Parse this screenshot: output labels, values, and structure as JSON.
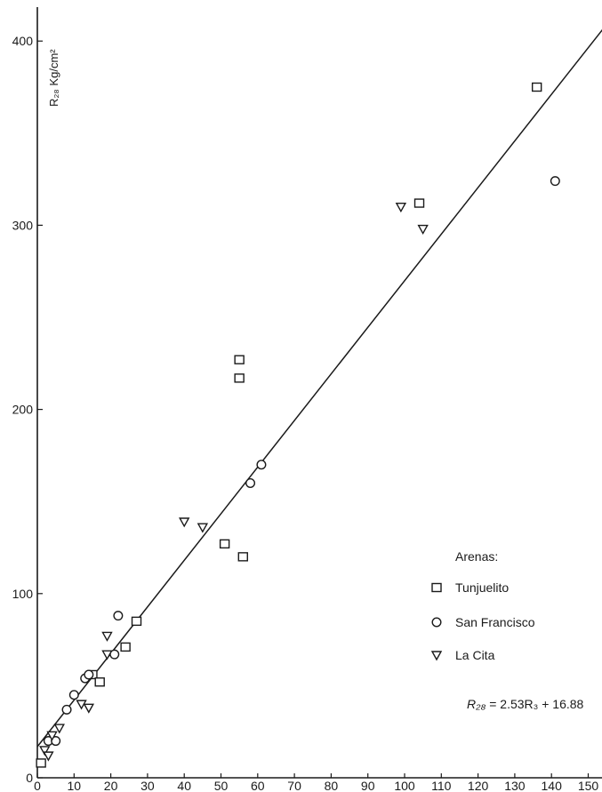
{
  "chart_data": {
    "type": "scatter",
    "title": "",
    "xlabel": "",
    "ylabel": "R₂₈ Kg/cm²",
    "xlim": [
      0,
      154
    ],
    "ylim": [
      0,
      410
    ],
    "x_ticks": [
      0,
      10,
      20,
      30,
      40,
      50,
      60,
      70,
      80,
      90,
      100,
      110,
      120,
      130,
      140,
      150
    ],
    "y_ticks": [
      0,
      100,
      200,
      300,
      400
    ],
    "grid": false,
    "legend_title": "Arenas:",
    "legend_placement": "right",
    "equation": {
      "text_lhs": "R₂₈",
      "text_rhs": " =  2.53R₃  +  16.88",
      "slope": 2.53,
      "intercept": 16.88
    },
    "series": [
      {
        "name": "Tunjuelito",
        "marker": "square",
        "points": [
          [
            1,
            8
          ],
          [
            15,
            56
          ],
          [
            17,
            52
          ],
          [
            24,
            71
          ],
          [
            27,
            85
          ],
          [
            51,
            127
          ],
          [
            55,
            217
          ],
          [
            55,
            227
          ],
          [
            56,
            120
          ],
          [
            104,
            312
          ],
          [
            136,
            375
          ]
        ]
      },
      {
        "name": "San Francisco",
        "marker": "circle",
        "points": [
          [
            3,
            20
          ],
          [
            5,
            20
          ],
          [
            8,
            37
          ],
          [
            10,
            45
          ],
          [
            13,
            54
          ],
          [
            14,
            56
          ],
          [
            21,
            67
          ],
          [
            22,
            88
          ],
          [
            58,
            160
          ],
          [
            61,
            170
          ],
          [
            141,
            324
          ]
        ]
      },
      {
        "name": "La Cita",
        "marker": "triangle-down",
        "points": [
          [
            2,
            15
          ],
          [
            3,
            12
          ],
          [
            4,
            23
          ],
          [
            6,
            27
          ],
          [
            12,
            40
          ],
          [
            14,
            38
          ],
          [
            19,
            67
          ],
          [
            19,
            77
          ],
          [
            40,
            139
          ],
          [
            45,
            136
          ],
          [
            99,
            310
          ],
          [
            105,
            298
          ]
        ]
      }
    ]
  }
}
